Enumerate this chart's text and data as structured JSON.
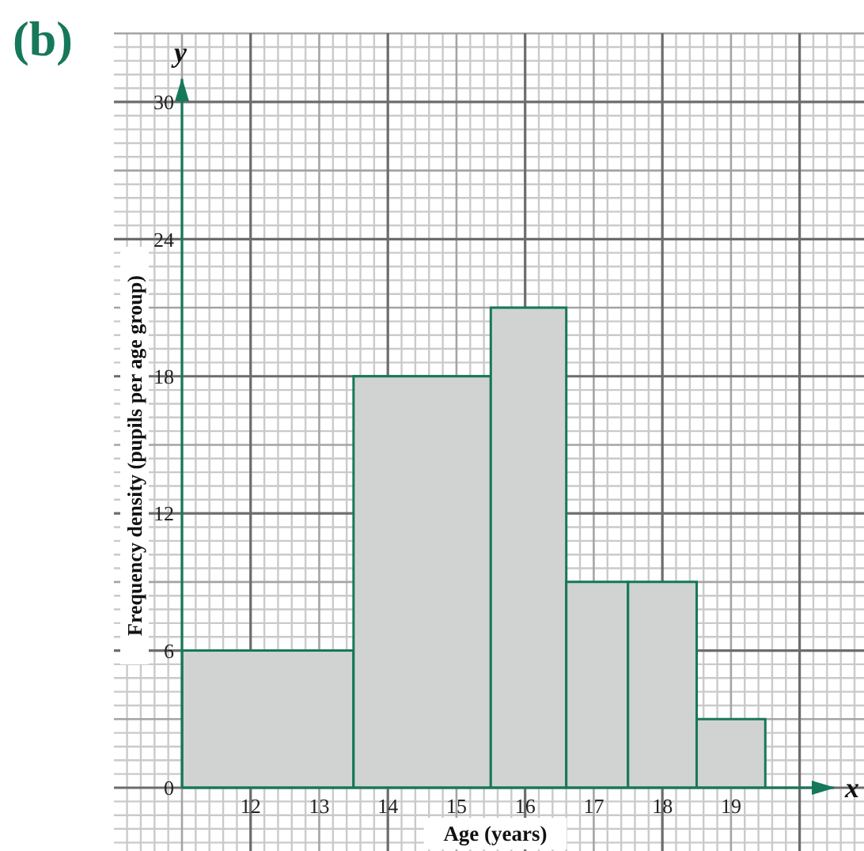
{
  "chart_data": {
    "type": "histogram",
    "title": "(b)",
    "xlabel": "Age (years)",
    "ylabel": "Frequency density (pupils per age group)",
    "bins": [
      11,
      13.5,
      15.5,
      16.6,
      17.5,
      18.5,
      19.5
    ],
    "values": [
      6,
      18,
      21,
      9,
      9,
      3
    ],
    "color": "#d1d3d2",
    "xlim": [
      11,
      20.5
    ],
    "ylim": [
      0,
      31
    ],
    "xticks": [
      12,
      13,
      14,
      15,
      16,
      17,
      18,
      19
    ],
    "yticks": [
      0,
      6,
      12,
      18,
      24,
      30
    ],
    "grid": true,
    "annotations": [
      "x",
      "y"
    ]
  }
}
